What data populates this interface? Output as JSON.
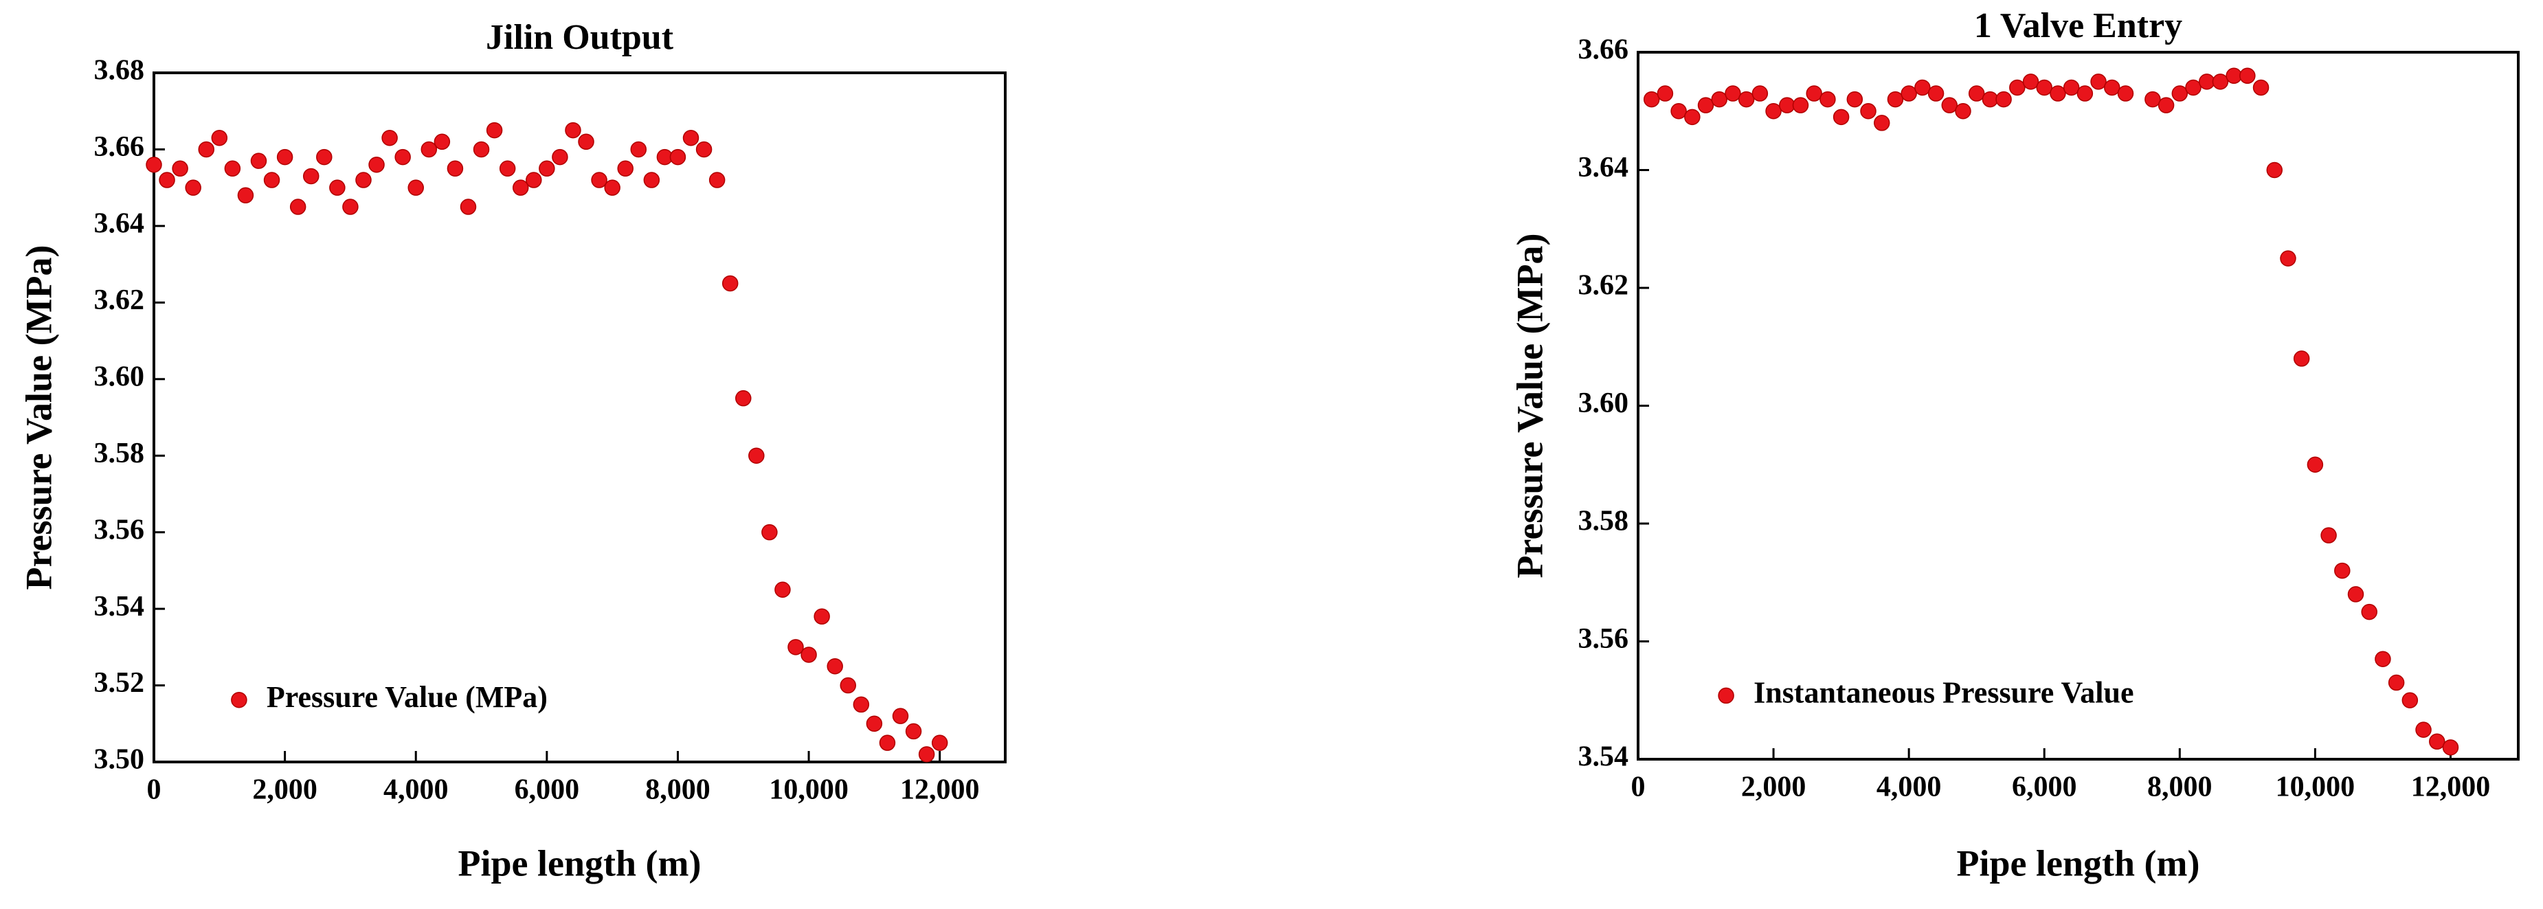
{
  "chart_data": [
    {
      "type": "scatter",
      "title": "Jilin Output",
      "x_label": "Pipe length (m)",
      "y_label": "Pressure Value (MPa)",
      "xlim": [
        0,
        13000
      ],
      "ylim": [
        3.5,
        3.68
      ],
      "xticks": [
        0,
        {
          "value": 2000,
          "label": "2,000"
        },
        {
          "value": 4000,
          "label": "4,000"
        },
        {
          "value": 6000,
          "label": "6,000"
        },
        {
          "value": 8000,
          "label": "8,000"
        },
        {
          "value": 10000,
          "label": "10,000"
        },
        {
          "value": 12000,
          "label": "12,000"
        }
      ],
      "yticks": [
        {
          "value": 3.5,
          "label": "3.50"
        },
        {
          "value": 3.52,
          "label": "3.52"
        },
        {
          "value": 3.54,
          "label": "3.54"
        },
        {
          "value": 3.56,
          "label": "3.56"
        },
        {
          "value": 3.58,
          "label": "3.58"
        },
        {
          "value": 3.6,
          "label": "3.60"
        },
        {
          "value": 3.62,
          "label": "3.62"
        },
        {
          "value": 3.64,
          "label": "3.64"
        },
        {
          "value": 3.66,
          "label": "3.66"
        },
        {
          "value": 3.68,
          "label": "3.68"
        }
      ],
      "legend": "lower left",
      "series": [
        {
          "name": "Pressure Value (MPa)",
          "color": "#e8141b",
          "x": [
            0,
            200,
            400,
            600,
            800,
            1000,
            1200,
            1400,
            1600,
            1800,
            2000,
            2200,
            2400,
            2600,
            2800,
            3000,
            3200,
            3400,
            3600,
            3800,
            4000,
            4200,
            4400,
            4600,
            4800,
            5000,
            5200,
            5400,
            5600,
            5800,
            6000,
            6200,
            6400,
            6600,
            6800,
            7000,
            7200,
            7400,
            7600,
            7800,
            8000,
            8200,
            8400,
            8600,
            8800,
            9000,
            9200,
            9400,
            9600,
            9800,
            10000,
            10200,
            10400,
            10600,
            10800,
            11000,
            11200,
            11400,
            11600,
            11800,
            12000
          ],
          "values": [
            3.656,
            3.652,
            3.655,
            3.65,
            3.66,
            3.663,
            3.655,
            3.648,
            3.657,
            3.652,
            3.658,
            3.645,
            3.653,
            3.658,
            3.65,
            3.645,
            3.652,
            3.656,
            3.663,
            3.658,
            3.65,
            3.66,
            3.662,
            3.655,
            3.645,
            3.66,
            3.665,
            3.655,
            3.65,
            3.652,
            3.655,
            3.658,
            3.665,
            3.662,
            3.652,
            3.65,
            3.655,
            3.66,
            3.652,
            3.658,
            3.658,
            3.663,
            3.66,
            3.652,
            3.625,
            3.595,
            3.58,
            3.56,
            3.545,
            3.53,
            3.528,
            3.538,
            3.525,
            3.52,
            3.515,
            3.51,
            3.505,
            3.512,
            3.508,
            3.502,
            3.505
          ]
        }
      ]
    },
    {
      "type": "scatter",
      "title": "1 Valve Entry",
      "x_label": "Pipe length (m)",
      "y_label": "Pressure Value (MPa)",
      "xlim": [
        0,
        13000
      ],
      "ylim": [
        3.54,
        3.66
      ],
      "xticks": [
        0,
        {
          "value": 2000,
          "label": "2,000"
        },
        {
          "value": 4000,
          "label": "4,000"
        },
        {
          "value": 6000,
          "label": "6,000"
        },
        {
          "value": 8000,
          "label": "8,000"
        },
        {
          "value": 10000,
          "label": "10,000"
        },
        {
          "value": 12000,
          "label": "12,000"
        }
      ],
      "yticks": [
        {
          "value": 3.54,
          "label": "3.54"
        },
        {
          "value": 3.56,
          "label": "3.56"
        },
        {
          "value": 3.58,
          "label": "3.58"
        },
        {
          "value": 3.6,
          "label": "3.60"
        },
        {
          "value": 3.62,
          "label": "3.62"
        },
        {
          "value": 3.64,
          "label": "3.64"
        },
        {
          "value": 3.66,
          "label": "3.66"
        }
      ],
      "legend": "lower left",
      "series": [
        {
          "name": "Instantaneous Pressure Value",
          "color": "#e8141b",
          "x": [
            200,
            400,
            600,
            800,
            1000,
            1200,
            1400,
            1600,
            1800,
            2000,
            2200,
            2400,
            2600,
            2800,
            3000,
            3200,
            3400,
            3600,
            3800,
            4000,
            4200,
            4400,
            4600,
            4800,
            5000,
            5200,
            5400,
            5600,
            5800,
            6000,
            6200,
            6400,
            6600,
            6800,
            7000,
            7200,
            7600,
            7800,
            8000,
            8200,
            8400,
            8600,
            8800,
            9000,
            9200,
            9400,
            9600,
            9800,
            10000,
            10200,
            10400,
            10600,
            10800,
            11000,
            11200,
            11400,
            11600,
            11800,
            12000
          ],
          "values": [
            3.652,
            3.653,
            3.65,
            3.649,
            3.651,
            3.652,
            3.653,
            3.652,
            3.653,
            3.65,
            3.651,
            3.651,
            3.653,
            3.652,
            3.649,
            3.652,
            3.65,
            3.648,
            3.652,
            3.653,
            3.654,
            3.653,
            3.651,
            3.65,
            3.653,
            3.652,
            3.652,
            3.654,
            3.655,
            3.654,
            3.653,
            3.654,
            3.653,
            3.655,
            3.654,
            3.653,
            3.652,
            3.651,
            3.653,
            3.654,
            3.655,
            3.655,
            3.656,
            3.656,
            3.654,
            3.64,
            3.625,
            3.608,
            3.59,
            3.578,
            3.572,
            3.568,
            3.565,
            3.557,
            3.553,
            3.55,
            3.545,
            3.543,
            3.542
          ]
        }
      ]
    }
  ]
}
